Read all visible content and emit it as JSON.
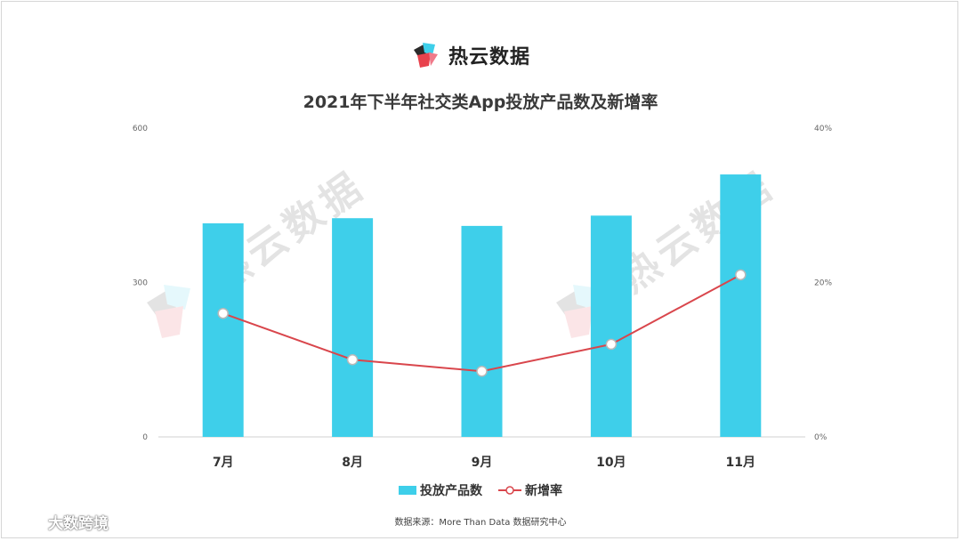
{
  "brand": {
    "name": "热云数据",
    "logo_icon": "reyun-logo-icon"
  },
  "watermark": "热云数据",
  "corner_logo_text": "大数跨境",
  "source": "数据来源：More Than Data 数据研究中心",
  "chart_data": {
    "type": "bar+line",
    "title": "2021年下半年社交类App投放产品数及新增率",
    "categories": [
      "7月",
      "8月",
      "9月",
      "10月",
      "11月"
    ],
    "series": [
      {
        "name": "投放产品数",
        "type": "bar",
        "axis": "left",
        "color": "#3ecfea",
        "values": [
          415,
          425,
          410,
          430,
          510
        ]
      },
      {
        "name": "新增率",
        "type": "line",
        "axis": "right",
        "color": "#d9464c",
        "values": [
          0.16,
          0.1,
          0.085,
          0.12,
          0.21
        ]
      }
    ],
    "y_left": {
      "min": 0,
      "max": 600,
      "ticks": [
        "0",
        "300",
        "600"
      ],
      "tick_values": [
        0,
        300,
        600
      ]
    },
    "y_right": {
      "min": 0,
      "max": 0.4,
      "ticks": [
        "0%",
        "20%",
        "40%"
      ],
      "tick_values": [
        0,
        0.2,
        0.4
      ]
    },
    "legend_position": "bottom-center",
    "grid": false
  }
}
